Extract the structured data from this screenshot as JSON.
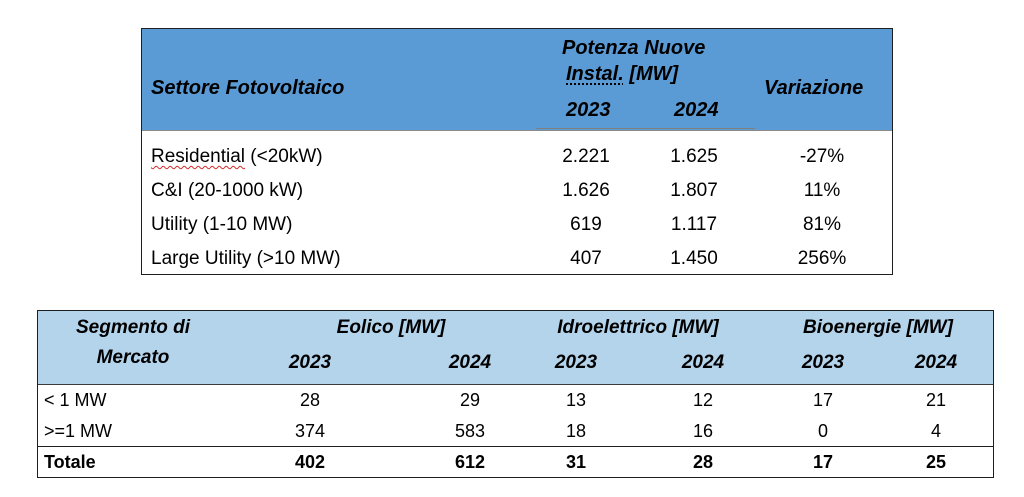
{
  "table1": {
    "header": {
      "sector": "Settore Fotovoltaico",
      "group_line1": "Potenza Nuove",
      "group_line2_a": "Instal.",
      "group_line2_b": "[MW]",
      "year1": "2023",
      "year2": "2024",
      "variation": "Variazione"
    },
    "rows": [
      {
        "label_a": "Residential",
        "label_b": " (<20kW)",
        "v2023": "2.221",
        "v2024": "1.625",
        "var": "-27%"
      },
      {
        "label_a": "C&I (20-1000 kW)",
        "label_b": "",
        "v2023": "1.626",
        "v2024": "1.807",
        "var": "11%"
      },
      {
        "label_a": "Utility (1-10 MW)",
        "label_b": "",
        "v2023": "619",
        "v2024": "1.117",
        "var": "81%"
      },
      {
        "label_a": "Large Utility (>10 MW)",
        "label_b": "",
        "v2023": "407",
        "v2024": "1.450",
        "var": "256%"
      }
    ]
  },
  "table2": {
    "header": {
      "segment_line1": "Segmento di",
      "segment_line2": "Mercato",
      "groups": [
        "Eolico [MW]",
        "Idroelettrico [MW]",
        "Bioenergie [MW]"
      ],
      "years": [
        "2023",
        "2024",
        "2023",
        "2024",
        "2023",
        "2024"
      ]
    },
    "rows": [
      {
        "label": "< 1 MW",
        "values": [
          "28",
          "29",
          "13",
          "12",
          "17",
          "21"
        ]
      },
      {
        "label": ">=1 MW",
        "values": [
          "374",
          "583",
          "18",
          "16",
          "0",
          "4"
        ]
      },
      {
        "label": "Totale",
        "values": [
          "402",
          "612",
          "31",
          "28",
          "17",
          "25"
        ]
      }
    ]
  }
}
